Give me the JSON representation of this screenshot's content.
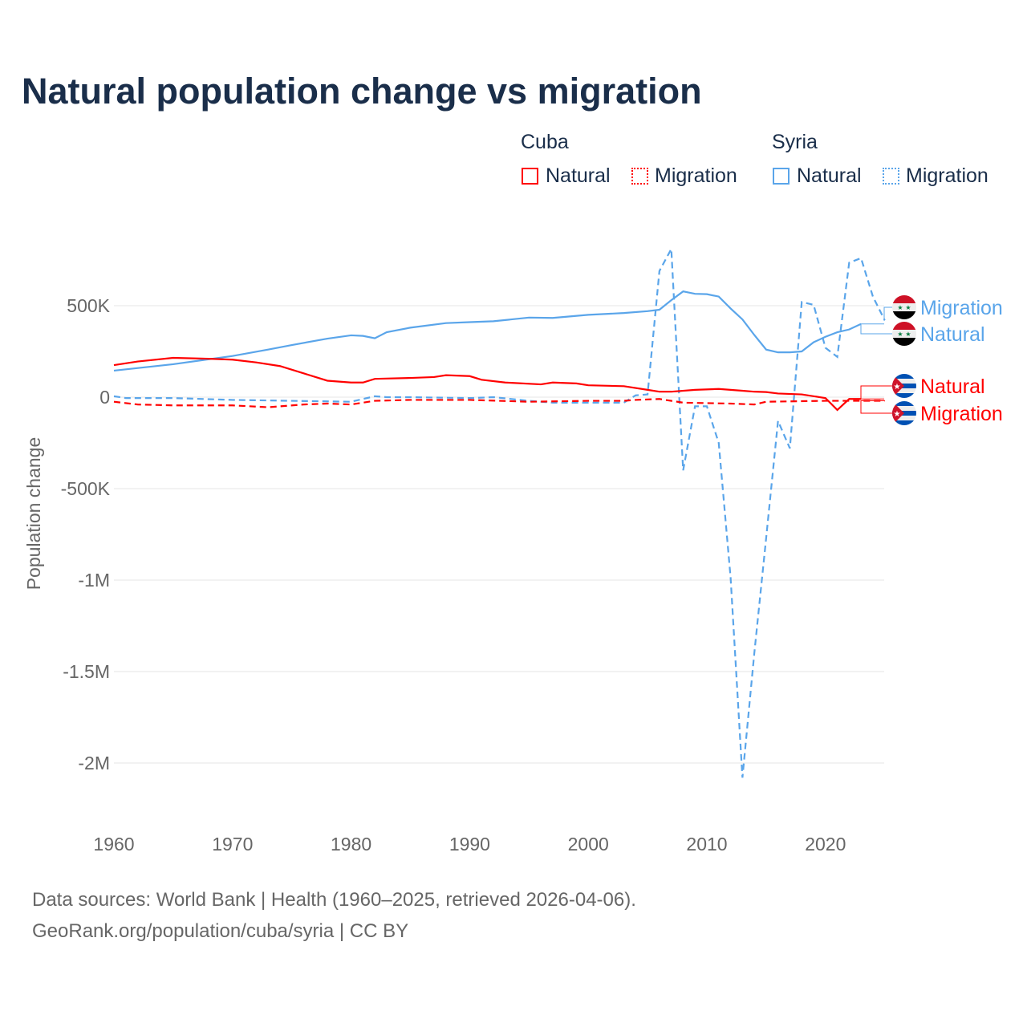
{
  "title": "Natural population change vs migration",
  "legend": {
    "groups": [
      {
        "name": "Cuba",
        "natural": "Natural",
        "migration": "Migration"
      },
      {
        "name": "Syria",
        "natural": "Natural",
        "migration": "Migration"
      }
    ]
  },
  "footer": {
    "line1": "Data sources: World Bank | Health (1960–2025, retrieved 2026-04-06).",
    "line2": "GeoRank.org/population/cuba/syria | CC BY"
  },
  "colors": {
    "cuba": "#ff0000",
    "syria": "#5aa5ea"
  },
  "chart_data": {
    "type": "line",
    "ylabel": "Population change",
    "xlim": [
      1960,
      2025
    ],
    "ylim": [
      -2250000,
      900000
    ],
    "xticks": [
      1960,
      1970,
      1980,
      1990,
      2000,
      2010,
      2020
    ],
    "xtick_labels": [
      "1960",
      "1970",
      "1980",
      "1990",
      "2000",
      "2010",
      "2020"
    ],
    "yticks": [
      500000,
      0,
      -500000,
      -1000000,
      -1500000,
      -2000000
    ],
    "ytick_labels": [
      "500K",
      "0",
      "-500K",
      "-1M",
      "-1.5M",
      "-2M"
    ],
    "series": [
      {
        "name": "Syria Migration",
        "country": "Syria",
        "kind": "Migration",
        "label": "Migration",
        "dashed": true,
        "color": "#5aa5ea",
        "points": [
          [
            1960,
            5000
          ],
          [
            1961,
            -5000
          ],
          [
            1965,
            -5000
          ],
          [
            1970,
            -15000
          ],
          [
            1975,
            -20000
          ],
          [
            1980,
            -25000
          ],
          [
            1982,
            5000
          ],
          [
            1983,
            0
          ],
          [
            1985,
            0
          ],
          [
            1990,
            -5000
          ],
          [
            1992,
            0
          ],
          [
            1995,
            -20000
          ],
          [
            1997,
            -30000
          ],
          [
            2000,
            -30000
          ],
          [
            2003,
            -30000
          ],
          [
            2004,
            10000
          ],
          [
            2005,
            15000
          ],
          [
            2006,
            690000
          ],
          [
            2007,
            810000
          ],
          [
            2008,
            -400000
          ],
          [
            2009,
            -50000
          ],
          [
            2010,
            -50000
          ],
          [
            2011,
            -250000
          ],
          [
            2012,
            -985000
          ],
          [
            2013,
            -2080000
          ],
          [
            2014,
            -1400000
          ],
          [
            2015,
            -770000
          ],
          [
            2016,
            -130000
          ],
          [
            2017,
            -280000
          ],
          [
            2018,
            520000
          ],
          [
            2019,
            505000
          ],
          [
            2020,
            270000
          ],
          [
            2021,
            220000
          ],
          [
            2022,
            735000
          ],
          [
            2023,
            760000
          ],
          [
            2024,
            550000
          ],
          [
            2025,
            420000
          ]
        ]
      },
      {
        "name": "Syria Natural",
        "country": "Syria",
        "kind": "Natural",
        "label": "Natural",
        "dashed": false,
        "color": "#5aa5ea",
        "points": [
          [
            1960,
            145000
          ],
          [
            1965,
            180000
          ],
          [
            1970,
            225000
          ],
          [
            1973,
            260000
          ],
          [
            1975,
            285000
          ],
          [
            1978,
            320000
          ],
          [
            1980,
            338000
          ],
          [
            1981,
            335000
          ],
          [
            1982,
            322000
          ],
          [
            1983,
            355000
          ],
          [
            1985,
            380000
          ],
          [
            1988,
            405000
          ],
          [
            1990,
            410000
          ],
          [
            1992,
            415000
          ],
          [
            1995,
            435000
          ],
          [
            1997,
            433000
          ],
          [
            2000,
            450000
          ],
          [
            2003,
            460000
          ],
          [
            2005,
            470000
          ],
          [
            2006,
            478000
          ],
          [
            2007,
            530000
          ],
          [
            2008,
            578000
          ],
          [
            2009,
            565000
          ],
          [
            2010,
            563000
          ],
          [
            2011,
            550000
          ],
          [
            2012,
            485000
          ],
          [
            2013,
            425000
          ],
          [
            2014,
            340000
          ],
          [
            2015,
            260000
          ],
          [
            2016,
            245000
          ],
          [
            2017,
            245000
          ],
          [
            2018,
            250000
          ],
          [
            2019,
            300000
          ],
          [
            2020,
            330000
          ],
          [
            2021,
            355000
          ],
          [
            2022,
            370000
          ],
          [
            2023,
            400000
          ]
        ]
      },
      {
        "name": "Cuba Natural",
        "country": "Cuba",
        "kind": "Natural",
        "label": "Natural",
        "dashed": false,
        "color": "#ff0000",
        "points": [
          [
            1960,
            175000
          ],
          [
            1962,
            195000
          ],
          [
            1965,
            215000
          ],
          [
            1968,
            210000
          ],
          [
            1970,
            205000
          ],
          [
            1972,
            190000
          ],
          [
            1974,
            170000
          ],
          [
            1976,
            130000
          ],
          [
            1978,
            90000
          ],
          [
            1980,
            80000
          ],
          [
            1981,
            80000
          ],
          [
            1982,
            100000
          ],
          [
            1985,
            105000
          ],
          [
            1987,
            110000
          ],
          [
            1988,
            120000
          ],
          [
            1990,
            115000
          ],
          [
            1991,
            95000
          ],
          [
            1993,
            80000
          ],
          [
            1996,
            70000
          ],
          [
            1997,
            80000
          ],
          [
            1999,
            75000
          ],
          [
            2000,
            65000
          ],
          [
            2003,
            60000
          ],
          [
            2005,
            40000
          ],
          [
            2006,
            30000
          ],
          [
            2007,
            30000
          ],
          [
            2009,
            40000
          ],
          [
            2011,
            45000
          ],
          [
            2013,
            35000
          ],
          [
            2014,
            30000
          ],
          [
            2015,
            28000
          ],
          [
            2016,
            20000
          ],
          [
            2018,
            15000
          ],
          [
            2020,
            -5000
          ],
          [
            2021,
            -70000
          ],
          [
            2022,
            -10000
          ],
          [
            2023,
            -10000
          ]
        ]
      },
      {
        "name": "Cuba Migration",
        "country": "Cuba",
        "kind": "Migration",
        "label": "Migration",
        "dashed": true,
        "color": "#ff0000",
        "points": [
          [
            1960,
            -25000
          ],
          [
            1962,
            -40000
          ],
          [
            1965,
            -45000
          ],
          [
            1970,
            -45000
          ],
          [
            1973,
            -55000
          ],
          [
            1976,
            -40000
          ],
          [
            1978,
            -35000
          ],
          [
            1980,
            -40000
          ],
          [
            1982,
            -20000
          ],
          [
            1985,
            -15000
          ],
          [
            1990,
            -15000
          ],
          [
            1995,
            -25000
          ],
          [
            2000,
            -20000
          ],
          [
            2003,
            -20000
          ],
          [
            2004,
            -15000
          ],
          [
            2006,
            -10000
          ],
          [
            2008,
            -30000
          ],
          [
            2012,
            -35000
          ],
          [
            2014,
            -40000
          ],
          [
            2015,
            -25000
          ],
          [
            2020,
            -20000
          ],
          [
            2025,
            -20000
          ]
        ]
      }
    ]
  }
}
